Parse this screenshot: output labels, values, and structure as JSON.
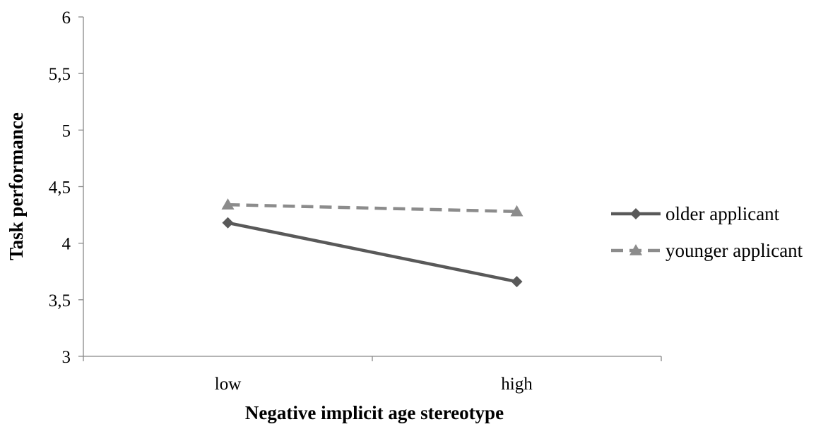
{
  "chart_data": {
    "type": "line",
    "categories": [
      "low",
      "high"
    ],
    "series": [
      {
        "name": "older applicant",
        "values": [
          4.18,
          3.66
        ],
        "color": "#595959",
        "line_style": "solid",
        "marker": "diamond"
      },
      {
        "name": "younger applicant",
        "values": [
          4.34,
          4.28
        ],
        "color": "#8c8c8c",
        "line_style": "dashed",
        "marker": "triangle"
      }
    ],
    "xlabel": "Negative implicit age stereotype",
    "ylabel": "Task performance",
    "ylim": [
      3,
      6
    ],
    "yticks": [
      {
        "value": 3,
        "label": "3"
      },
      {
        "value": 3.5,
        "label": "3,5"
      },
      {
        "value": 4,
        "label": "4"
      },
      {
        "value": 4.5,
        "label": "4,5"
      },
      {
        "value": 5,
        "label": "5"
      },
      {
        "value": 5.5,
        "label": "5,5"
      },
      {
        "value": 6,
        "label": "6"
      }
    ],
    "grid": false,
    "legend_position": "right"
  }
}
